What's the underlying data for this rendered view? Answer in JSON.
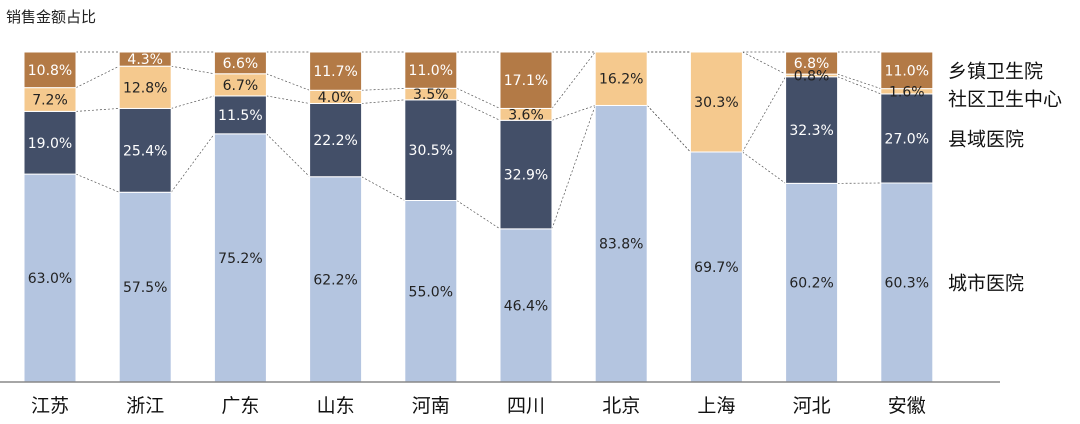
{
  "chart_data": {
    "type": "bar",
    "title": "销售金额占比",
    "stacked": true,
    "categories": [
      "江苏",
      "浙江",
      "广东",
      "山东",
      "河南",
      "四川",
      "北京",
      "上海",
      "河北",
      "安徽"
    ],
    "series": [
      {
        "name": "城市医院",
        "color": "#b4c5e0",
        "label_color": "#222222",
        "values": [
          63.0,
          57.5,
          75.2,
          62.2,
          55.0,
          46.4,
          83.8,
          69.7,
          60.2,
          60.3
        ],
        "labels": [
          "63.0%",
          "57.5%",
          "75.2%",
          "62.2%",
          "55.0%",
          "46.4%",
          "83.8%",
          "69.7%",
          "60.2%",
          "60.3%"
        ]
      },
      {
        "name": "县域医院",
        "color": "#434f68",
        "label_color": "#ffffff",
        "values": [
          19.0,
          25.4,
          11.5,
          22.2,
          30.5,
          32.9,
          0,
          0,
          32.3,
          27.0
        ],
        "labels": [
          "19.0%",
          "25.4%",
          "11.5%",
          "22.2%",
          "30.5%",
          "32.9%",
          "",
          "",
          "32.3%",
          "27.0%"
        ]
      },
      {
        "name": "社区卫生中心",
        "color": "#f5c98e",
        "label_color": "#222222",
        "values": [
          7.2,
          12.8,
          6.7,
          4.0,
          3.5,
          3.6,
          16.2,
          30.3,
          0.8,
          1.6
        ],
        "labels": [
          "7.2%",
          "12.8%",
          "6.7%",
          "4.0%",
          "3.5%",
          "3.6%",
          "16.2%",
          "30.3%",
          "0.8%",
          "1.6%"
        ]
      },
      {
        "name": "乡镇卫生院",
        "color": "#b37a46",
        "label_color": "#ffffff",
        "values": [
          10.8,
          4.3,
          6.6,
          11.7,
          11.0,
          17.1,
          0,
          0,
          6.8,
          11.0
        ],
        "labels": [
          "10.8%",
          "4.3%",
          "6.6%",
          "11.7%",
          "11.0%",
          "17.1%",
          "",
          "",
          "6.8%",
          "11.0%"
        ]
      }
    ],
    "ylim": [
      0,
      100
    ],
    "grid": false,
    "legend_position": "right"
  }
}
